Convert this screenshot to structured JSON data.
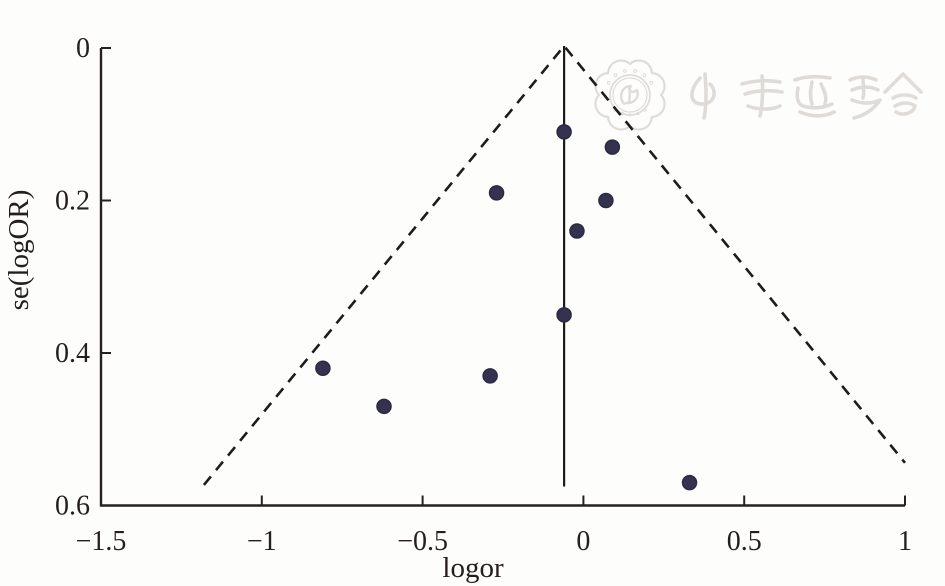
{
  "figure": {
    "background": "#fdfdfc",
    "axis_color": "#262120",
    "text_color": "#241f1d",
    "watermark": {
      "text": "中华医学会",
      "description": "chinese-medical-association-seal-and-calligraphy",
      "color": "#dedbd7"
    }
  },
  "chart_data": {
    "type": "scatter",
    "subtype": "funnel-plot",
    "title": "",
    "xlabel": "logor",
    "ylabel": "se(logOR)",
    "xlim": [
      -1.5,
      1
    ],
    "ylim": [
      0,
      0.6
    ],
    "y_axis_reversed": true,
    "grid": false,
    "legend": false,
    "x_ticks": [
      -1.5,
      -1,
      -0.5,
      0,
      0.5,
      1
    ],
    "x_tick_labels": [
      "−1.5",
      "−1",
      "−0.5",
      "0",
      "0.5",
      "1"
    ],
    "y_ticks": [
      0,
      0.2,
      0.4,
      0.6
    ],
    "y_tick_labels": [
      "0",
      "0.2",
      "0.4",
      "0.6"
    ],
    "points": [
      {
        "logor": -0.06,
        "se": 0.11
      },
      {
        "logor": 0.09,
        "se": 0.13
      },
      {
        "logor": -0.27,
        "se": 0.19
      },
      {
        "logor": 0.07,
        "se": 0.2
      },
      {
        "logor": -0.02,
        "se": 0.24
      },
      {
        "logor": -0.06,
        "se": 0.35
      },
      {
        "logor": -0.81,
        "se": 0.42
      },
      {
        "logor": -0.62,
        "se": 0.47
      },
      {
        "logor": -0.29,
        "se": 0.43
      },
      {
        "logor": 0.33,
        "se": 0.57
      }
    ],
    "point_style": {
      "fill": "#353250",
      "stroke": "#2b2942",
      "radius": 7
    },
    "center_line": {
      "x": -0.06,
      "se_top": 0,
      "se_bottom": 0.575
    },
    "pseudo_ci_lines": {
      "slope_z": 1.96,
      "apex": {
        "x": -0.06,
        "se": 0
      },
      "left_end": {
        "x": -1.18,
        "se": 0.573
      },
      "right_end": {
        "x": 1.0,
        "se": 0.544
      },
      "style": "dashed"
    }
  }
}
